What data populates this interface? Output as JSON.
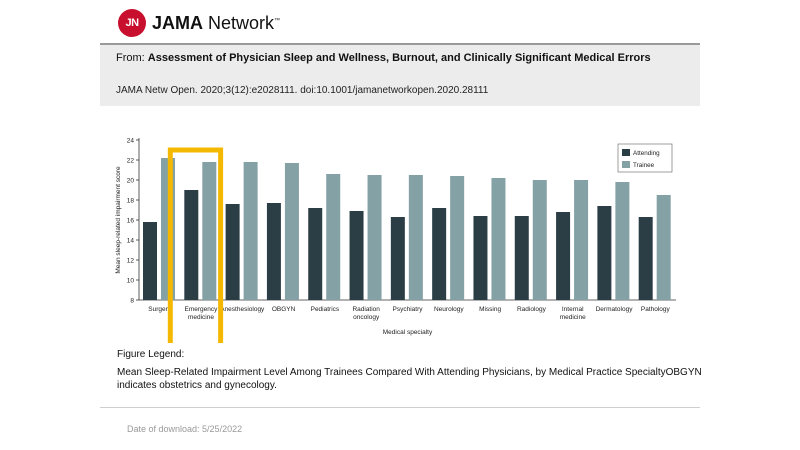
{
  "header": {
    "logo_mark": "JN",
    "logo_brand": "JAMA",
    "logo_word": " Network",
    "logo_tm": "™"
  },
  "citation": {
    "from_prefix": "From: ",
    "title": "Assessment of Physician Sleep and Wellness, Burnout, and Clinically Significant Medical Errors",
    "reference": "JAMA Netw Open. 2020;3(12):e2028111. doi:10.1001/jamanetworkopen.2020.28111"
  },
  "figure": {
    "legend_title": "Figure Legend:",
    "legend_text": "Mean Sleep-Related Impairment Level Among Trainees Compared With Attending Physicians, by Medical Practice SpecialtyOBGYN indicates obstetrics and gynecology."
  },
  "footer": {
    "download": "Date of download:  5/25/2022"
  },
  "chart_data": {
    "type": "bar",
    "title": "",
    "xlabel": "Medical specialty",
    "ylabel": "Mean sleep-related impairment score",
    "ylim": [
      8,
      24
    ],
    "yticks": [
      8,
      10,
      12,
      14,
      16,
      18,
      20,
      22,
      24
    ],
    "legend_position": "top-right",
    "categories": [
      [
        "Surgery"
      ],
      [
        "Emergency",
        "medicine"
      ],
      [
        "Anesthesiology"
      ],
      [
        "OBGYN"
      ],
      [
        "Pediatrics"
      ],
      [
        "Radiation",
        "oncology"
      ],
      [
        "Psychiatry"
      ],
      [
        "Neurology"
      ],
      [
        "Missing"
      ],
      [
        "Radiology"
      ],
      [
        "Internal",
        "medicine"
      ],
      [
        "Dermatology"
      ],
      [
        "Pathology"
      ]
    ],
    "series": [
      {
        "name": "Attending",
        "color": "#2c3e45",
        "values": [
          15.8,
          19.0,
          17.6,
          17.7,
          17.2,
          16.9,
          16.3,
          17.2,
          16.4,
          16.4,
          16.8,
          17.4,
          16.3
        ]
      },
      {
        "name": "Trainee",
        "color": "#84a1a5",
        "values": [
          22.2,
          21.8,
          21.8,
          21.7,
          20.6,
          20.5,
          20.5,
          20.4,
          20.2,
          20.0,
          20.0,
          19.8,
          18.5
        ]
      }
    ],
    "highlight_index": 1,
    "highlight_color": "#f5b800"
  }
}
